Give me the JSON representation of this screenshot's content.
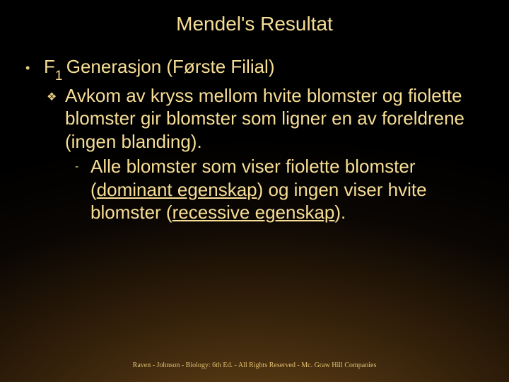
{
  "title": "Mendel's Resultat",
  "level1": {
    "bullet": "•",
    "heading_pre": "F",
    "heading_sub": "1 ",
    "heading_post": "Generasjon (Første Filial)"
  },
  "level2": {
    "bullet": "❖",
    "text": "Avkom av kryss mellom hvite blomster og fiolette blomster gir blomster som ligner en av foreldrene (ingen blanding)."
  },
  "level3": {
    "bullet": "-",
    "seg1": "Alle blomster som viser fiolette blomster (",
    "u1": "dominant egenskap",
    "seg2": ") og ingen viser hvite blomster (",
    "u2": "recessive egenskap",
    "seg3": ")."
  },
  "footer": "Raven - Johnson - Biology: 6th Ed. - All Rights Reserved - Mc. Graw Hill Companies",
  "colors": {
    "text": "#f5d88a",
    "title": "#f7de95",
    "footer": "#e0c070"
  },
  "fonts": {
    "title_size": 28,
    "body_size": 26,
    "sub_size": 19,
    "footer_size": 10
  }
}
